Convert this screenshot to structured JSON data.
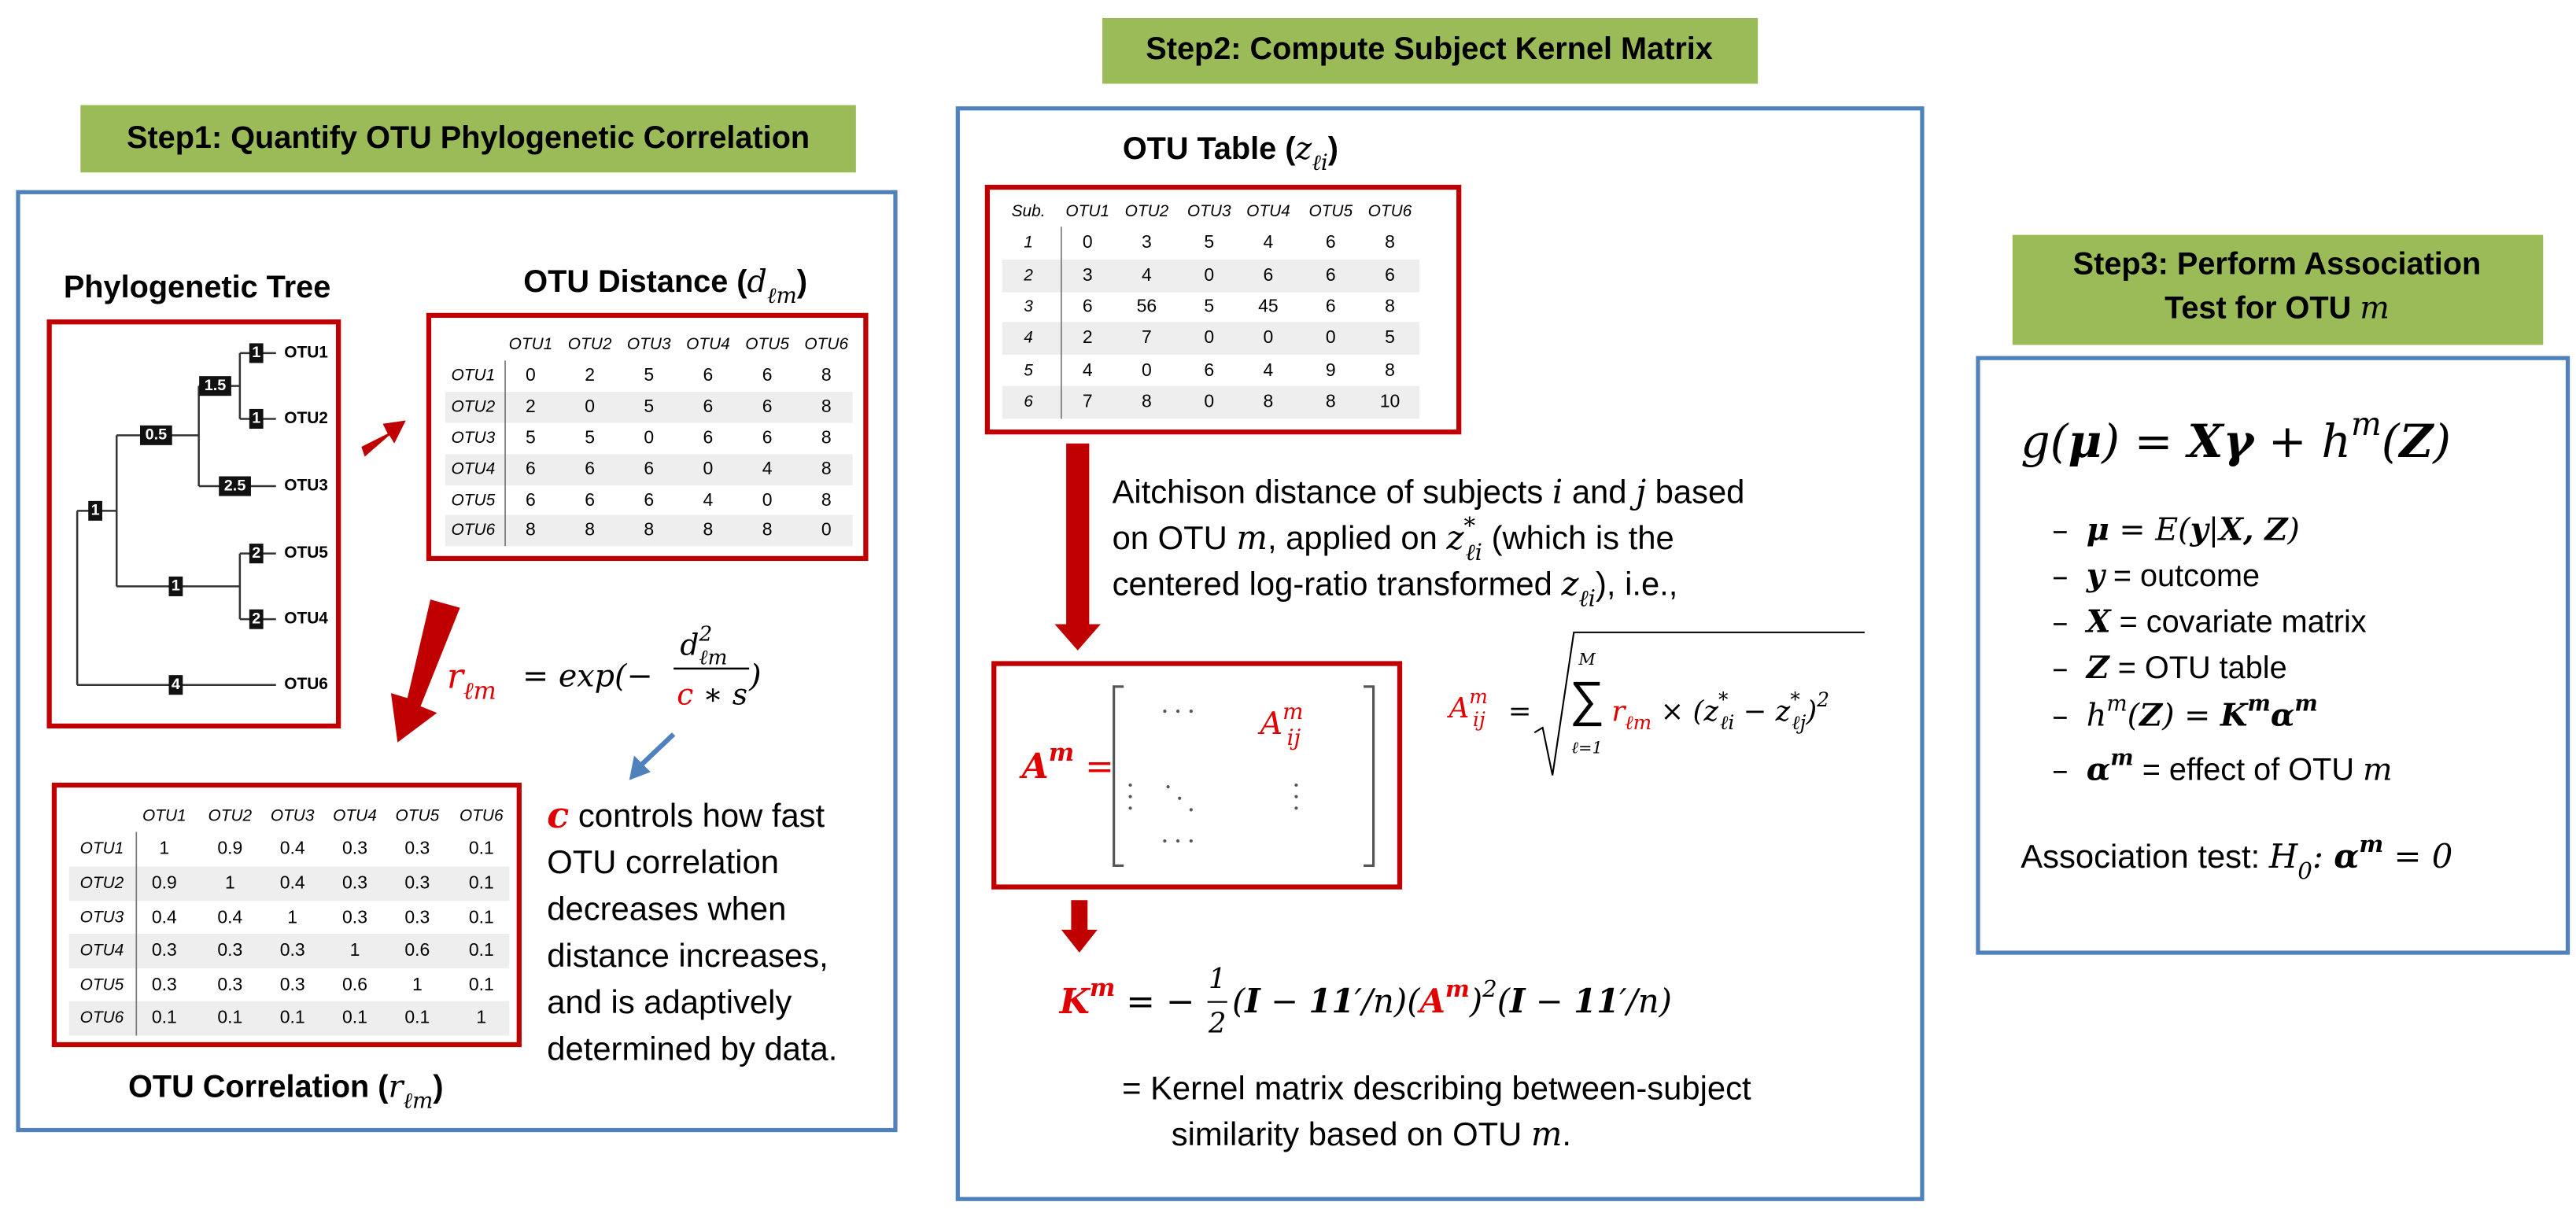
{
  "step1": {
    "title": "Step1: Quantify OTU Phylogenetic Correlation",
    "tree": {
      "title": "Phylogenetic Tree",
      "leaves": [
        "OTU1",
        "OTU2",
        "OTU3",
        "OTU5",
        "OTU4",
        "OTU6"
      ],
      "branch_lengths": [
        "1",
        "1",
        "1.5",
        "2.5",
        "0.5",
        "2",
        "2",
        "1",
        "1",
        "4"
      ]
    },
    "distance": {
      "title": [
        "OTU Distance (",
        "d",
        "ℓm",
        ")"
      ],
      "columns": [
        "OTU1",
        "OTU2",
        "OTU3",
        "OTU4",
        "OTU5",
        "OTU6"
      ],
      "rows": [
        [
          "OTU1",
          "0",
          "2",
          "5",
          "6",
          "6",
          "8"
        ],
        [
          "OTU2",
          "2",
          "0",
          "5",
          "6",
          "6",
          "8"
        ],
        [
          "OTU3",
          "5",
          "5",
          "0",
          "6",
          "6",
          "8"
        ],
        [
          "OTU4",
          "6",
          "6",
          "6",
          "0",
          "4",
          "8"
        ],
        [
          "OTU5",
          "6",
          "6",
          "6",
          "4",
          "0",
          "8"
        ],
        [
          "OTU6",
          "8",
          "8",
          "8",
          "8",
          "8",
          "0"
        ]
      ]
    },
    "formula": {
      "lhs": [
        "r",
        "ℓm"
      ],
      "eq": "= exp(−",
      "num": [
        "d",
        "2",
        "ℓm"
      ],
      "den": [
        "c",
        " ∗ s"
      ],
      "close": ")"
    },
    "note": {
      "c": "c",
      "lines": [
        " controls how fast",
        "OTU correlation",
        "decreases when",
        "distance increases,",
        "and is adaptively",
        "determined by data."
      ]
    },
    "correlation": {
      "title": [
        "OTU Correlation (",
        "r",
        "ℓm",
        ")"
      ],
      "columns": [
        "OTU1",
        "OTU2",
        "OTU3",
        "OTU4",
        "OTU5",
        "OTU6"
      ],
      "rows": [
        [
          "OTU1",
          "1",
          "0.9",
          "0.4",
          "0.3",
          "0.3",
          "0.1"
        ],
        [
          "OTU2",
          "0.9",
          "1",
          "0.4",
          "0.3",
          "0.3",
          "0.1"
        ],
        [
          "OTU3",
          "0.4",
          "0.4",
          "1",
          "0.3",
          "0.3",
          "0.1"
        ],
        [
          "OTU4",
          "0.3",
          "0.3",
          "0.3",
          "1",
          "0.6",
          "0.1"
        ],
        [
          "OTU5",
          "0.3",
          "0.3",
          "0.3",
          "0.6",
          "1",
          "0.1"
        ],
        [
          "OTU6",
          "0.1",
          "0.1",
          "0.1",
          "0.1",
          "0.1",
          "1"
        ]
      ]
    }
  },
  "step2": {
    "title": "Step2: Compute Subject Kernel Matrix",
    "otu_table": {
      "title": [
        "OTU Table (",
        "z",
        "ℓi",
        ")"
      ],
      "columns": [
        "Sub.",
        "OTU1",
        "OTU2",
        "OTU3",
        "OTU4",
        "OTU5",
        "OTU6"
      ],
      "rows": [
        [
          "1",
          "0",
          "3",
          "5",
          "4",
          "6",
          "8"
        ],
        [
          "2",
          "3",
          "4",
          "0",
          "6",
          "6",
          "6"
        ],
        [
          "3",
          "6",
          "56",
          "5",
          "45",
          "6",
          "8"
        ],
        [
          "4",
          "2",
          "7",
          "0",
          "0",
          "0",
          "5"
        ],
        [
          "5",
          "4",
          "0",
          "6",
          "4",
          "9",
          "8"
        ],
        [
          "6",
          "7",
          "8",
          "0",
          "8",
          "8",
          "10"
        ]
      ]
    },
    "description": [
      [
        "Aitchison distance of subjects ",
        "i",
        " and  ",
        "j",
        " based"
      ],
      [
        "on OTU ",
        "m",
        ", applied on ",
        "z",
        "*",
        "ℓi",
        " (which is the"
      ],
      [
        "centered log-ratio transformed ",
        "z",
        "ℓi",
        "), i.e.,"
      ]
    ],
    "matrix": {
      "lhs": [
        "A",
        "m",
        " ="
      ],
      "entry": [
        "A",
        "m",
        "ij"
      ]
    },
    "aitchison": [
      "A",
      "m",
      "ij",
      "=",
      "M",
      "∑",
      "ℓ=1",
      "r",
      "ℓm",
      " × (",
      "z",
      "*",
      "ℓi",
      " − ",
      "z",
      "*",
      "ℓj",
      ")",
      "2"
    ],
    "kernel": [
      "K",
      "m",
      " = −",
      "1",
      "2",
      "(",
      "I",
      " − ",
      "11",
      "′/",
      "n",
      ")(",
      "A",
      "m",
      ")",
      "2",
      "(",
      "I",
      " − ",
      "11",
      "′/",
      "n",
      ")"
    ],
    "kernel_note": [
      "=  Kernel matrix describing between-subject",
      "similarity based on OTU ",
      "m",
      "."
    ]
  },
  "step3": {
    "title": [
      "Step3: Perform Association",
      "Test for OTU ",
      "m"
    ],
    "model": [
      "g",
      "(",
      "μ",
      ") = ",
      "Xγ",
      " + ",
      "h",
      "m",
      "(",
      "Z",
      ")"
    ],
    "bullets": [
      [
        "μ",
        " = E(",
        "y",
        "|",
        "X, Z",
        ")"
      ],
      [
        "y",
        " = outcome"
      ],
      [
        "X",
        " = covariate matrix"
      ],
      [
        "Z",
        " = OTU table"
      ],
      [
        "h",
        "m",
        "(",
        "Z",
        ") = ",
        "K",
        "m",
        "α",
        "m"
      ],
      [
        "α",
        "m",
        " = effect of OTU ",
        "m"
      ]
    ],
    "test": [
      "Association test: ",
      "H",
      "0",
      ": ",
      "α",
      "m",
      " = 0"
    ]
  }
}
